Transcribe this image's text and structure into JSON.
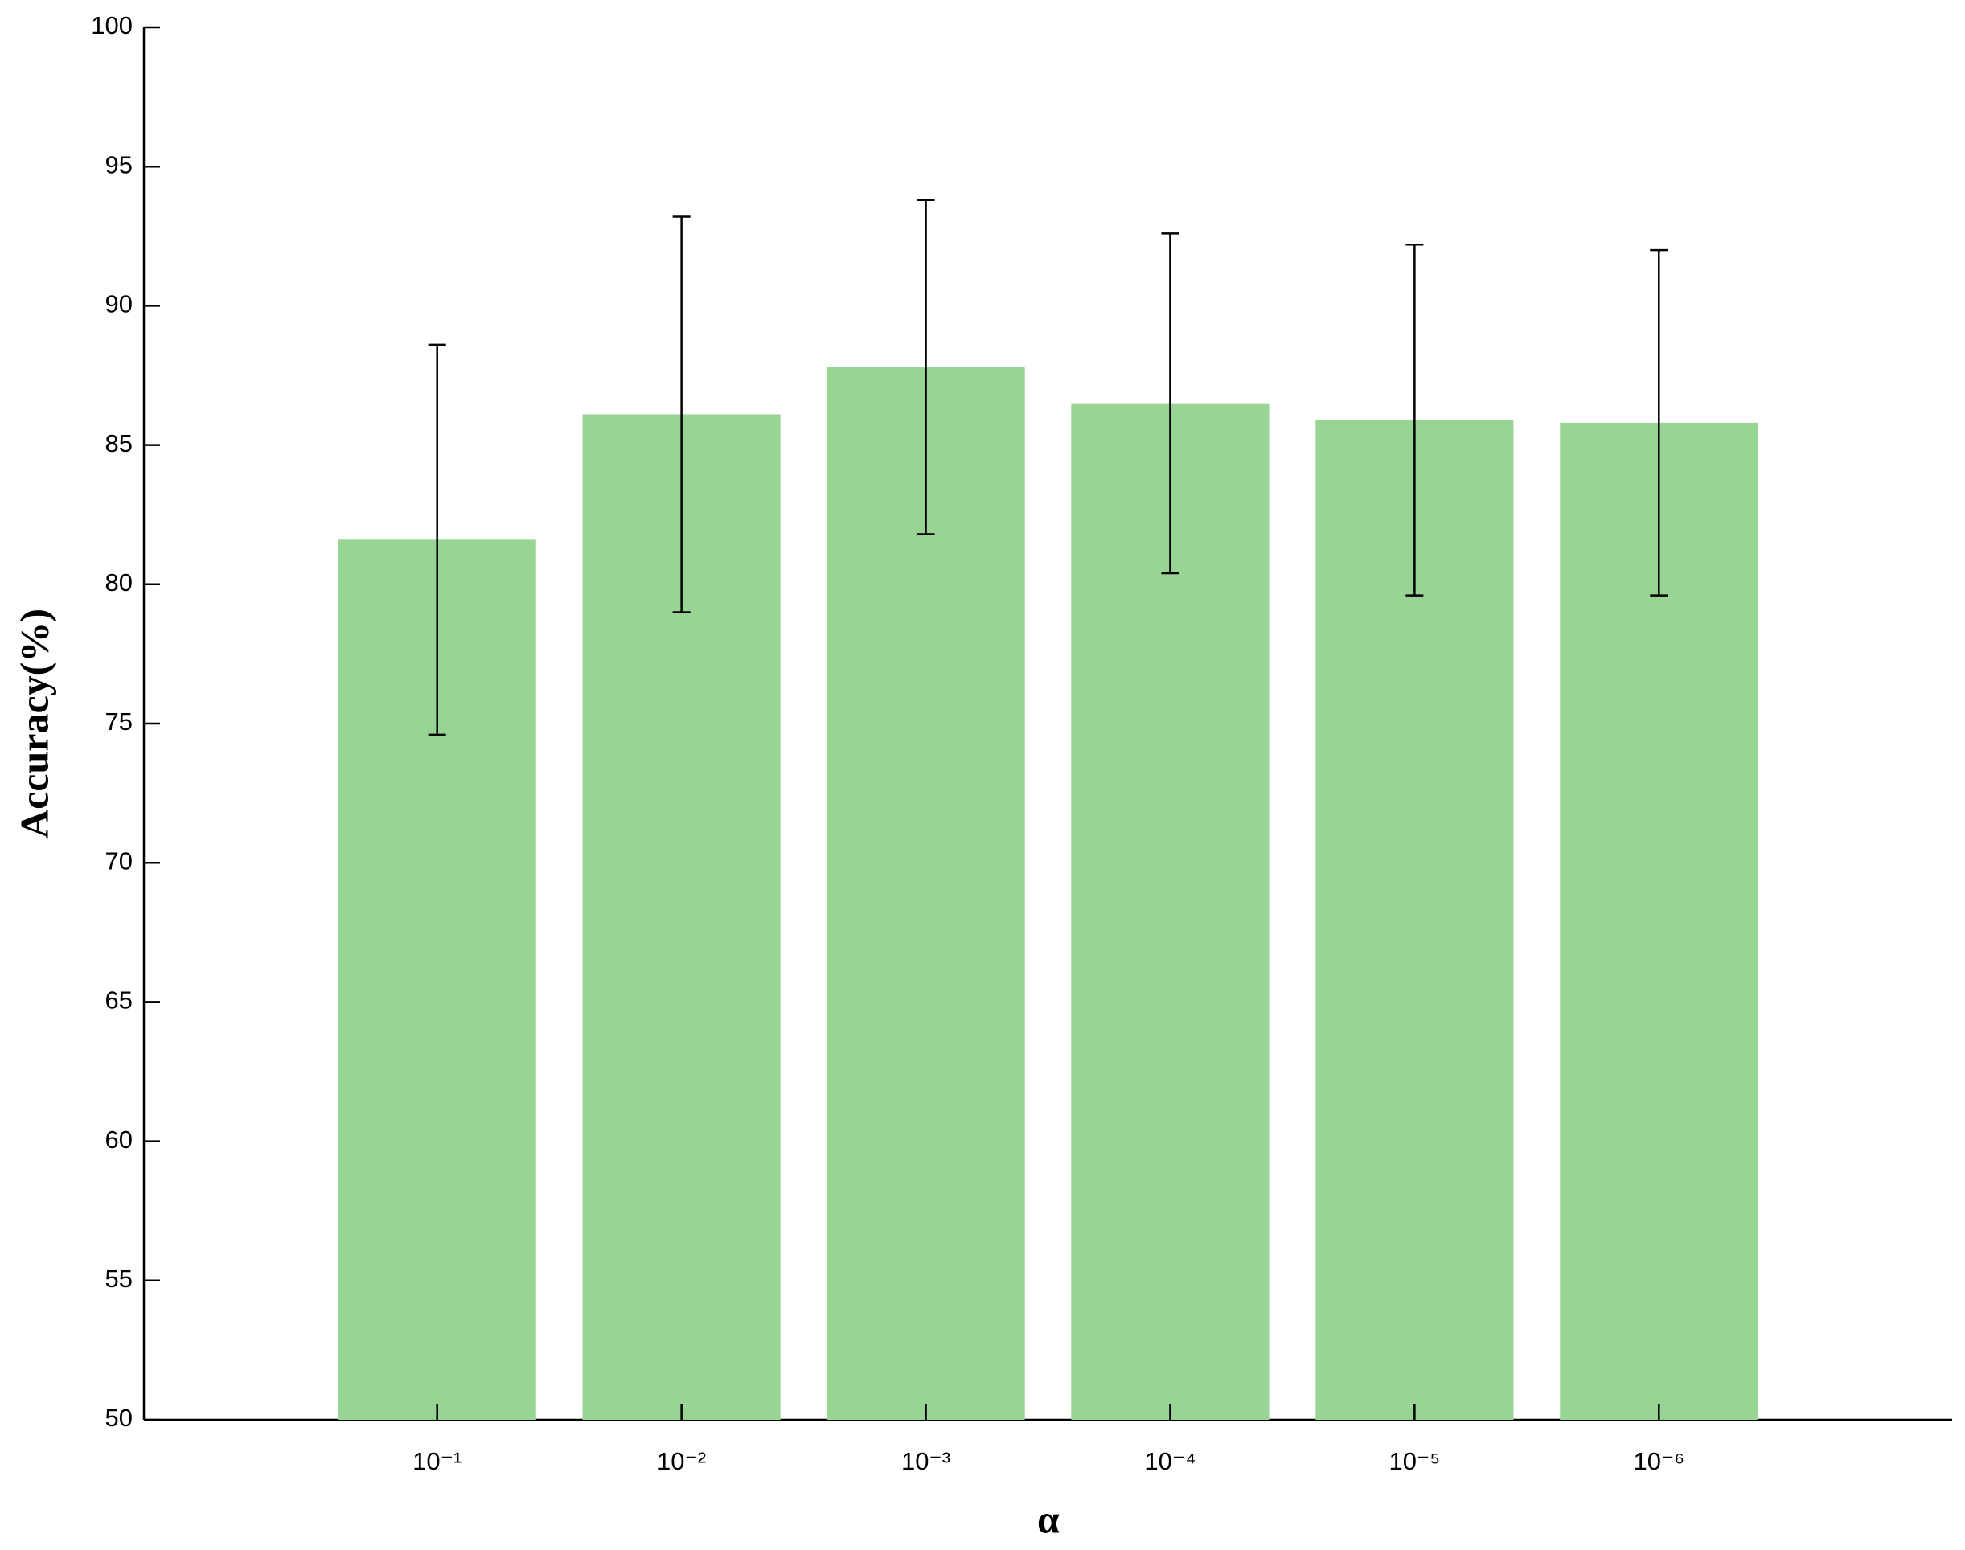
{
  "chart_data": {
    "type": "bar",
    "x_label": "α",
    "y_label": "Accuracy(%)",
    "categories": [
      "10⁻¹",
      "10⁻²",
      "10⁻³",
      "10⁻⁴",
      "10⁻⁵",
      "10⁻⁶"
    ],
    "values": [
      81.6,
      86.1,
      87.8,
      86.5,
      85.9,
      85.8
    ],
    "errors": [
      7.0,
      7.1,
      6.0,
      6.1,
      6.3,
      6.2
    ],
    "color": "#98d494",
    "ylim": [
      50,
      100
    ],
    "yticks": [
      50,
      55,
      60,
      65,
      70,
      75,
      80,
      85,
      90,
      95,
      100
    ],
    "grid": false
  }
}
